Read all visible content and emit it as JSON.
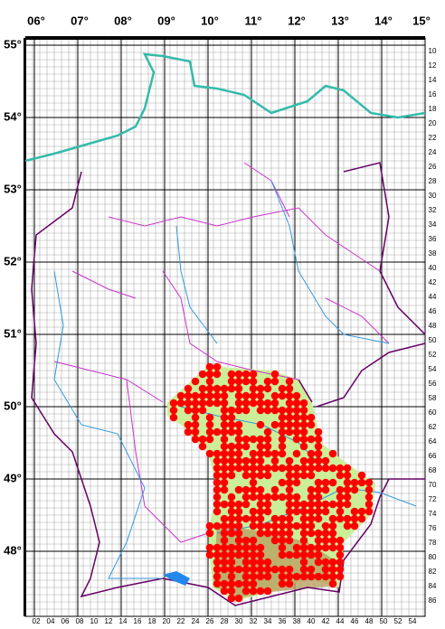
{
  "map": {
    "lon_labels": [
      "06°",
      "07°",
      "08°",
      "09°",
      "10°",
      "11°",
      "12°",
      "13°",
      "14°",
      "15°"
    ],
    "lat_labels": [
      "55°",
      "54°",
      "53°",
      "52°",
      "51°",
      "50°",
      "49°",
      "48°"
    ],
    "row_labels": [
      "10",
      "12",
      "14",
      "16",
      "18",
      "20",
      "22",
      "24",
      "26",
      "28",
      "30",
      "32",
      "34",
      "36",
      "38",
      "40",
      "42",
      "44",
      "46",
      "48",
      "50",
      "52",
      "54",
      "56",
      "58",
      "60",
      "62",
      "64",
      "66",
      "68",
      "70",
      "72",
      "74",
      "76",
      "78",
      "80",
      "82",
      "84",
      "86"
    ],
    "col_labels": [
      "02",
      "04",
      "06",
      "08",
      "10",
      "12",
      "14",
      "16",
      "18",
      "20",
      "22",
      "24",
      "26",
      "28",
      "30",
      "32",
      "34",
      "36",
      "38",
      "40",
      "42",
      "44",
      "46",
      "48",
      "50",
      "52",
      "54"
    ]
  }
}
